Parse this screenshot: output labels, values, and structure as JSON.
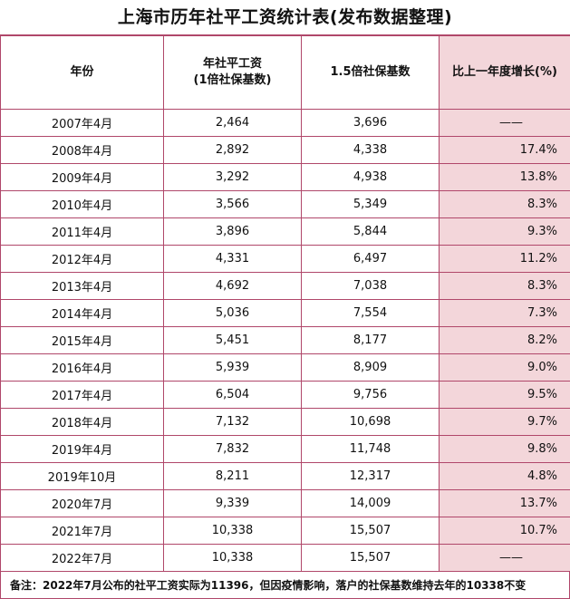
{
  "title": "上海市历年社平工资统计表(发布数据整理)",
  "headers": {
    "year": "年份",
    "wage_line1": "年社平工资",
    "wage_line2": "(1倍社保基数)",
    "base15": "1.5倍社保基数",
    "growth": "比上一年度增长(%)"
  },
  "rows": [
    {
      "period": "2007年4月",
      "wage": "2,464",
      "base15": "3,696",
      "growth": "——"
    },
    {
      "period": "2008年4月",
      "wage": "2,892",
      "base15": "4,338",
      "growth": "17.4%"
    },
    {
      "period": "2009年4月",
      "wage": "3,292",
      "base15": "4,938",
      "growth": "13.8%"
    },
    {
      "period": "2010年4月",
      "wage": "3,566",
      "base15": "5,349",
      "growth": "8.3%"
    },
    {
      "period": "2011年4月",
      "wage": "3,896",
      "base15": "5,844",
      "growth": "9.3%"
    },
    {
      "period": "2012年4月",
      "wage": "4,331",
      "base15": "6,497",
      "growth": "11.2%"
    },
    {
      "period": "2013年4月",
      "wage": "4,692",
      "base15": "7,038",
      "growth": "8.3%"
    },
    {
      "period": "2014年4月",
      "wage": "5,036",
      "base15": "7,554",
      "growth": "7.3%"
    },
    {
      "period": "2015年4月",
      "wage": "5,451",
      "base15": "8,177",
      "growth": "8.2%"
    },
    {
      "period": "2016年4月",
      "wage": "5,939",
      "base15": "8,909",
      "growth": "9.0%"
    },
    {
      "period": "2017年4月",
      "wage": "6,504",
      "base15": "9,756",
      "growth": "9.5%"
    },
    {
      "period": "2018年4月",
      "wage": "7,132",
      "base15": "10,698",
      "growth": "9.7%"
    },
    {
      "period": "2019年4月",
      "wage": "7,832",
      "base15": "11,748",
      "growth": "9.8%"
    },
    {
      "period": "2019年10月",
      "wage": "8,211",
      "base15": "12,317",
      "growth": "4.8%"
    },
    {
      "period": "2020年7月",
      "wage": "9,339",
      "base15": "14,009",
      "growth": "13.7%"
    },
    {
      "period": "2021年7月",
      "wage": "10,338",
      "base15": "15,507",
      "growth": "10.7%"
    },
    {
      "period": "2022年7月",
      "wage": "10,338",
      "base15": "15,507",
      "growth": "——"
    }
  ],
  "note": "备注：2022年7月公布的社平工资实际为11396，但因疫情影响，落户的社保基数维持去年的10338不变",
  "colors": {
    "border": "#b0476a",
    "highlight": "#f3d6da"
  }
}
